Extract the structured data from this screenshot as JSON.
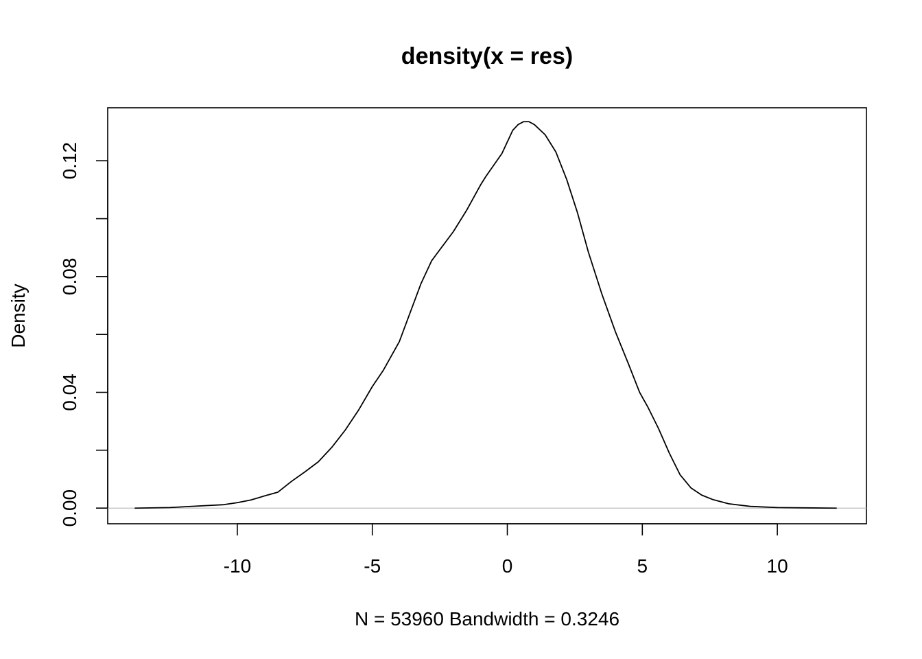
{
  "chart_data": {
    "type": "line",
    "title": "density(x = res)",
    "xlabel": "N = 53960   Bandwidth = 0.3246",
    "ylabel": "Density",
    "xlim": [
      -14.8,
      13.3
    ],
    "ylim": [
      -0.0054,
      0.1383
    ],
    "xticks": [
      -10,
      -5,
      0,
      5,
      10
    ],
    "xtick_labels": [
      "-10",
      "-5",
      "0",
      "5",
      "10"
    ],
    "yticks": [
      0,
      0.02,
      0.04,
      0.06,
      0.08,
      0.1,
      0.12
    ],
    "ytick_labels": [
      "0.00",
      "",
      "0.04",
      "",
      "0.08",
      "",
      "0.12"
    ],
    "grid": false,
    "baseline": {
      "y": 0,
      "color": "#bebebe"
    },
    "line_color": "#000000",
    "series": [
      {
        "x": [
          -13.8,
          -12.5,
          -11.5,
          -10.5,
          -10.0,
          -9.5,
          -9.0,
          -8.5,
          -8.0,
          -7.5,
          -7.0,
          -6.5,
          -6.0,
          -5.5,
          -5.0,
          -4.6,
          -4.0,
          -3.6,
          -3.2,
          -2.8,
          -2.4,
          -2.0,
          -1.5,
          -1.0,
          -0.8,
          -0.5,
          -0.2,
          0.0,
          0.2,
          0.4,
          0.6,
          0.8,
          1.0,
          1.4,
          1.8,
          2.2,
          2.6,
          3.0,
          3.5,
          4.0,
          4.5,
          4.9,
          5.2,
          5.6,
          6.0,
          6.4,
          6.8,
          7.2,
          7.6,
          8.2,
          9.0,
          10.0,
          11.0,
          12.2
        ],
        "y": [
          0.0,
          0.0002,
          0.0007,
          0.0012,
          0.0019,
          0.0028,
          0.0042,
          0.0055,
          0.0092,
          0.0125,
          0.016,
          0.021,
          0.027,
          0.034,
          0.042,
          0.0475,
          0.0575,
          0.0675,
          0.0775,
          0.0855,
          0.0905,
          0.0955,
          0.103,
          0.1115,
          0.1145,
          0.1185,
          0.1225,
          0.1265,
          0.1305,
          0.1325,
          0.1335,
          0.1335,
          0.1325,
          0.129,
          0.123,
          0.1135,
          0.102,
          0.0885,
          0.074,
          0.061,
          0.0495,
          0.04,
          0.035,
          0.0275,
          0.019,
          0.0115,
          0.007,
          0.0045,
          0.003,
          0.0015,
          0.0006,
          0.0002,
          0.0001,
          0.0
        ]
      }
    ]
  }
}
